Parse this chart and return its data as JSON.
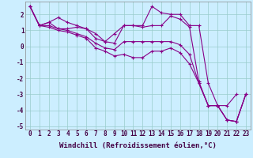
{
  "xlabel": "Windchill (Refroidissement éolien,°C)",
  "bg_color": "#cceeff",
  "line_color": "#880088",
  "grid_color": "#99cccc",
  "xlim": [
    -0.5,
    23.5
  ],
  "ylim": [
    -5.2,
    2.8
  ],
  "line1_y": [
    2.5,
    1.3,
    1.5,
    1.8,
    1.5,
    1.3,
    1.1,
    0.8,
    0.3,
    0.8,
    1.3,
    1.3,
    1.3,
    2.5,
    2.1,
    2.0,
    2.0,
    1.3,
    1.3,
    -2.3,
    -3.7,
    -3.7,
    -3.0,
    null
  ],
  "line2_y": [
    2.5,
    1.3,
    1.5,
    1.1,
    1.1,
    1.2,
    1.1,
    0.5,
    0.3,
    0.2,
    1.3,
    1.3,
    1.2,
    1.3,
    1.3,
    1.9,
    1.7,
    1.2,
    -2.2,
    -3.7,
    -3.7,
    -4.6,
    -4.7,
    -3.0
  ],
  "line3_y": [
    2.5,
    1.3,
    1.3,
    1.1,
    1.0,
    0.8,
    0.6,
    0.2,
    -0.1,
    -0.2,
    0.3,
    0.3,
    0.3,
    0.3,
    0.3,
    0.3,
    0.1,
    -0.5,
    -2.3,
    -3.7,
    -3.7,
    -4.6,
    -4.7,
    -3.0
  ],
  "line4_y": [
    2.5,
    1.3,
    1.2,
    1.0,
    0.9,
    0.7,
    0.5,
    -0.1,
    -0.3,
    -0.6,
    -0.5,
    -0.7,
    -0.7,
    -0.3,
    -0.3,
    -0.1,
    -0.4,
    -1.1,
    -2.3,
    -3.7,
    -3.7,
    -4.6,
    -4.7,
    -3.0
  ],
  "ytick_vals": [
    -5,
    -4,
    -3,
    -2,
    -1,
    0,
    1,
    2
  ],
  "xtick_labels": [
    "0",
    "1",
    "2",
    "3",
    "4",
    "5",
    "6",
    "7",
    "8",
    "9",
    "10",
    "11",
    "12",
    "13",
    "14",
    "15",
    "16",
    "17",
    "18",
    "19",
    "20",
    "21",
    "22",
    "23"
  ]
}
